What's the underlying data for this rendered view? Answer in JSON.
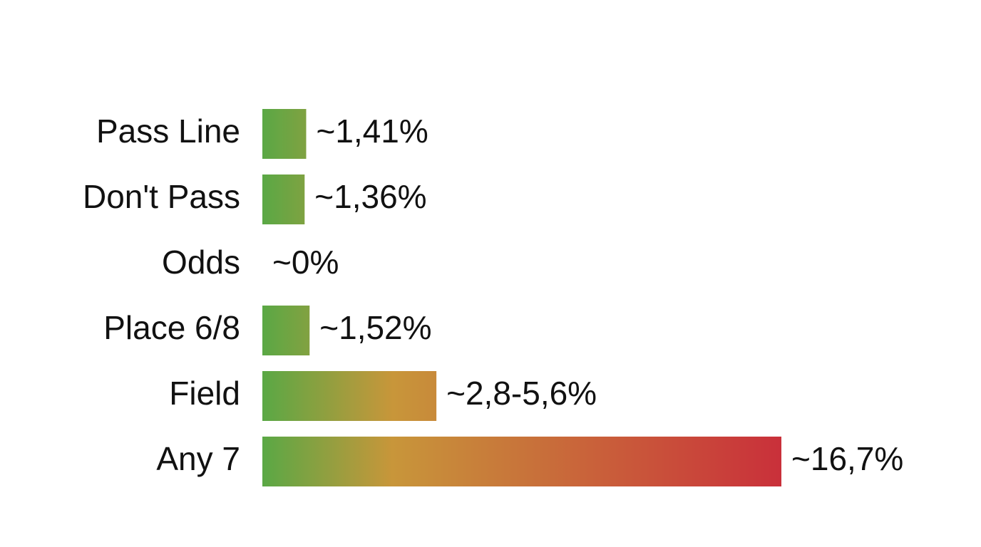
{
  "chart_data": {
    "type": "bar",
    "orientation": "horizontal",
    "categories": [
      "Pass Line",
      "Don't Pass",
      "Odds",
      "Place 6/8",
      "Field",
      "Any 7"
    ],
    "values": [
      1.41,
      1.36,
      0,
      1.52,
      5.6,
      16.7
    ],
    "value_labels": [
      "~1,41%",
      "~1,36%",
      "~0%",
      "~1,52%",
      "~2,8-5,6%",
      "~16,7%"
    ],
    "gradient": [
      "#5aa845",
      "#c8963a",
      "#c9303a"
    ]
  }
}
